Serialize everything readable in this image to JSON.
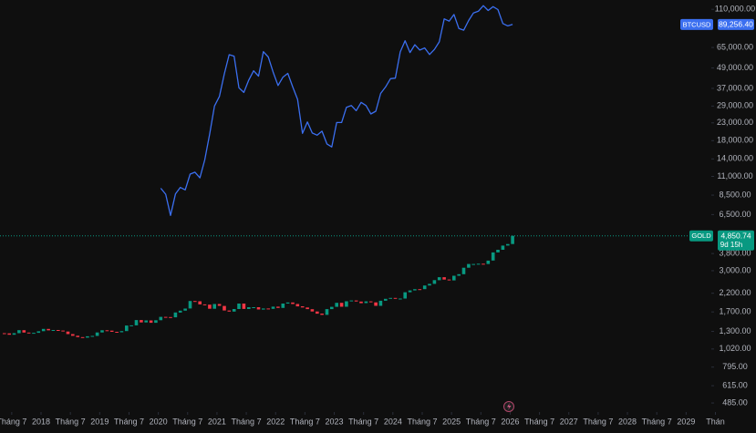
{
  "chart_data": {
    "type": "candlestick",
    "log_scale": true,
    "xlim": [
      2017.3,
      2029.43
    ],
    "ylim": [
      428,
      125000
    ],
    "xticks": [
      {
        "value": 2017.5,
        "label": "Tháng 7"
      },
      2018,
      {
        "value": 2018.5,
        "label": "Tháng 7"
      },
      2019,
      {
        "value": 2019.5,
        "label": "Tháng 7"
      },
      2020,
      {
        "value": 2020.5,
        "label": "Tháng 7"
      },
      2021,
      {
        "value": 2021.5,
        "label": "Tháng 7"
      },
      2022,
      {
        "value": 2022.5,
        "label": "Tháng 7"
      },
      2023,
      {
        "value": 2023.5,
        "label": "Tháng 7"
      },
      2024,
      {
        "value": 2024.5,
        "label": "Tháng 7"
      },
      2025,
      {
        "value": 2025.5,
        "label": "Tháng 7"
      },
      2026,
      {
        "value": 2026.5,
        "label": "Tháng 7"
      },
      2027,
      {
        "value": 2027.5,
        "label": "Tháng 7"
      },
      2028,
      {
        "value": 2028.5,
        "label": "Tháng 7"
      },
      2029,
      {
        "value": 2029.5,
        "label": "Thán"
      }
    ],
    "yticks": [
      {
        "value": 110000,
        "label": "110,000.00"
      },
      {
        "value": 65000,
        "label": "65,000.00"
      },
      {
        "value": 49000,
        "label": "49,000.00"
      },
      {
        "value": 37000,
        "label": "37,000.00"
      },
      {
        "value": 29000,
        "label": "29,000.00"
      },
      {
        "value": 23000,
        "label": "23,000.00"
      },
      {
        "value": 18000,
        "label": "18,000.00"
      },
      {
        "value": 14000,
        "label": "14,000.00"
      },
      {
        "value": 11000,
        "label": "11,000.00"
      },
      {
        "value": 8500,
        "label": "8,500.00"
      },
      {
        "value": 6500,
        "label": "6,500.00"
      },
      {
        "value": 3800,
        "label": "3,800.00"
      },
      {
        "value": 3000,
        "label": "3,000.00"
      },
      {
        "value": 2200,
        "label": "2,200.00"
      },
      {
        "value": 1700,
        "label": "1,700.00"
      },
      {
        "value": 1300,
        "label": "1,300.00"
      },
      {
        "value": 1020,
        "label": "1,020.00"
      },
      {
        "value": 795,
        "label": "795.00"
      },
      {
        "value": 615,
        "label": "615.00"
      },
      {
        "value": 485,
        "label": "485.00"
      }
    ],
    "series": [
      {
        "name": "BTCUSD",
        "type": "line",
        "color": "#3b6ff0",
        "last_label": "89,256.40",
        "x": [
          "2020-01",
          "2020-02",
          "2020-03",
          "2020-04",
          "2020-05",
          "2020-06",
          "2020-07",
          "2020-08",
          "2020-09",
          "2020-10",
          "2020-11",
          "2020-12",
          "2021-01",
          "2021-02",
          "2021-03",
          "2021-04",
          "2021-05",
          "2021-06",
          "2021-07",
          "2021-08",
          "2021-09",
          "2021-10",
          "2021-11",
          "2021-12",
          "2022-01",
          "2022-02",
          "2022-03",
          "2022-04",
          "2022-05",
          "2022-06",
          "2022-07",
          "2022-08",
          "2022-09",
          "2022-10",
          "2022-11",
          "2022-12",
          "2023-01",
          "2023-02",
          "2023-03",
          "2023-04",
          "2023-05",
          "2023-06",
          "2023-07",
          "2023-08",
          "2023-09",
          "2023-10",
          "2023-11",
          "2023-12",
          "2024-01",
          "2024-02",
          "2024-03",
          "2024-04",
          "2024-05",
          "2024-06",
          "2024-07",
          "2024-08",
          "2024-09",
          "2024-10",
          "2024-11",
          "2024-12",
          "2025-01",
          "2025-02",
          "2025-03",
          "2025-04",
          "2025-05",
          "2025-06",
          "2025-07",
          "2025-08",
          "2025-09",
          "2025-10",
          "2025-11",
          "2025-12",
          "2026-01"
        ],
        "values": [
          9350,
          8600,
          6430,
          8630,
          9450,
          9140,
          11350,
          11660,
          10780,
          13800,
          19700,
          29000,
          33100,
          45200,
          58800,
          57700,
          37300,
          35000,
          41500,
          47100,
          43800,
          61300,
          57000,
          46300,
          38500,
          43200,
          45500,
          37700,
          31800,
          19900,
          23300,
          20000,
          19400,
          20500,
          17200,
          16500,
          23100,
          23100,
          28500,
          29200,
          27200,
          30500,
          29200,
          26000,
          27000,
          34500,
          37700,
          42300,
          42600,
          61200,
          71300,
          60600,
          67500,
          62700,
          64600,
          59000,
          63300,
          70200,
          96400,
          93400,
          102400,
          84400,
          82500,
          94200,
          104600,
          107100,
          115700,
          108200,
          114000,
          109500,
          90400,
          87500,
          89256.4
        ]
      },
      {
        "name": "GOLD",
        "type": "candlestick",
        "up_color": "#089981",
        "down_color": "#f23645",
        "last_label": "4,850.74",
        "countdown": "9d 15h",
        "x": [
          "2017-05",
          "2017-06",
          "2017-07",
          "2017-08",
          "2017-09",
          "2017-10",
          "2017-11",
          "2017-12",
          "2018-01",
          "2018-02",
          "2018-03",
          "2018-04",
          "2018-05",
          "2018-06",
          "2018-07",
          "2018-08",
          "2018-09",
          "2018-10",
          "2018-11",
          "2018-12",
          "2019-01",
          "2019-02",
          "2019-03",
          "2019-04",
          "2019-05",
          "2019-06",
          "2019-07",
          "2019-08",
          "2019-09",
          "2019-10",
          "2019-11",
          "2019-12",
          "2020-01",
          "2020-02",
          "2020-03",
          "2020-04",
          "2020-05",
          "2020-06",
          "2020-07",
          "2020-08",
          "2020-09",
          "2020-10",
          "2020-11",
          "2020-12",
          "2021-01",
          "2021-02",
          "2021-03",
          "2021-04",
          "2021-05",
          "2021-06",
          "2021-07",
          "2021-08",
          "2021-09",
          "2021-10",
          "2021-11",
          "2021-12",
          "2022-01",
          "2022-02",
          "2022-03",
          "2022-04",
          "2022-05",
          "2022-06",
          "2022-07",
          "2022-08",
          "2022-09",
          "2022-10",
          "2022-11",
          "2022-12",
          "2023-01",
          "2023-02",
          "2023-03",
          "2023-04",
          "2023-05",
          "2023-06",
          "2023-07",
          "2023-08",
          "2023-09",
          "2023-10",
          "2023-11",
          "2023-12",
          "2024-01",
          "2024-02",
          "2024-03",
          "2024-04",
          "2024-05",
          "2024-06",
          "2024-07",
          "2024-08",
          "2024-09",
          "2024-10",
          "2024-11",
          "2024-12",
          "2025-01",
          "2025-02",
          "2025-03",
          "2025-04",
          "2025-05",
          "2025-06",
          "2025-07",
          "2025-08",
          "2025-09",
          "2025-10",
          "2025-11",
          "2025-12",
          "2026-01"
        ],
        "open": [
          1268,
          1266,
          1242,
          1269,
          1322,
          1280,
          1271,
          1275,
          1303,
          1345,
          1318,
          1325,
          1315,
          1298,
          1253,
          1224,
          1201,
          1192,
          1215,
          1222,
          1282,
          1321,
          1313,
          1292,
          1284,
          1305,
          1409,
          1413,
          1520,
          1472,
          1513,
          1464,
          1517,
          1589,
          1585,
          1577,
          1686,
          1730,
          1781,
          1975,
          1968,
          1886,
          1879,
          1776,
          1895,
          1847,
          1734,
          1708,
          1769,
          1907,
          1770,
          1814,
          1814,
          1757,
          1783,
          1774,
          1829,
          1797,
          1909,
          1937,
          1897,
          1837,
          1807,
          1766,
          1711,
          1661,
          1633,
          1768,
          1824,
          1928,
          1826,
          1969,
          1990,
          1962,
          1919,
          1965,
          1940,
          1849,
          1983,
          2036,
          2063,
          2039,
          2044,
          2230,
          2286,
          2327,
          2326,
          2447,
          2503,
          2634,
          2744,
          2657,
          2625,
          2798,
          2858,
          3124,
          3289,
          3289,
          3303,
          3290,
          3448,
          3858,
          4002,
          4240,
          4330
        ],
        "close": [
          1266,
          1242,
          1269,
          1322,
          1280,
          1271,
          1275,
          1303,
          1345,
          1318,
          1325,
          1315,
          1298,
          1253,
          1224,
          1201,
          1192,
          1215,
          1222,
          1282,
          1321,
          1313,
          1292,
          1284,
          1305,
          1409,
          1413,
          1520,
          1472,
          1513,
          1464,
          1517,
          1589,
          1585,
          1577,
          1686,
          1730,
          1781,
          1975,
          1968,
          1886,
          1879,
          1776,
          1895,
          1847,
          1734,
          1708,
          1769,
          1907,
          1770,
          1814,
          1814,
          1757,
          1783,
          1774,
          1829,
          1797,
          1909,
          1937,
          1897,
          1837,
          1807,
          1766,
          1711,
          1661,
          1633,
          1768,
          1824,
          1928,
          1826,
          1969,
          1990,
          1962,
          1919,
          1965,
          1940,
          1849,
          1983,
          2036,
          2063,
          2039,
          2044,
          2230,
          2286,
          2327,
          2326,
          2447,
          2503,
          2634,
          2744,
          2657,
          2625,
          2798,
          2858,
          3124,
          3289,
          3289,
          3303,
          3290,
          3448,
          3858,
          4002,
          4240,
          4330,
          4850.74
        ]
      }
    ]
  }
}
